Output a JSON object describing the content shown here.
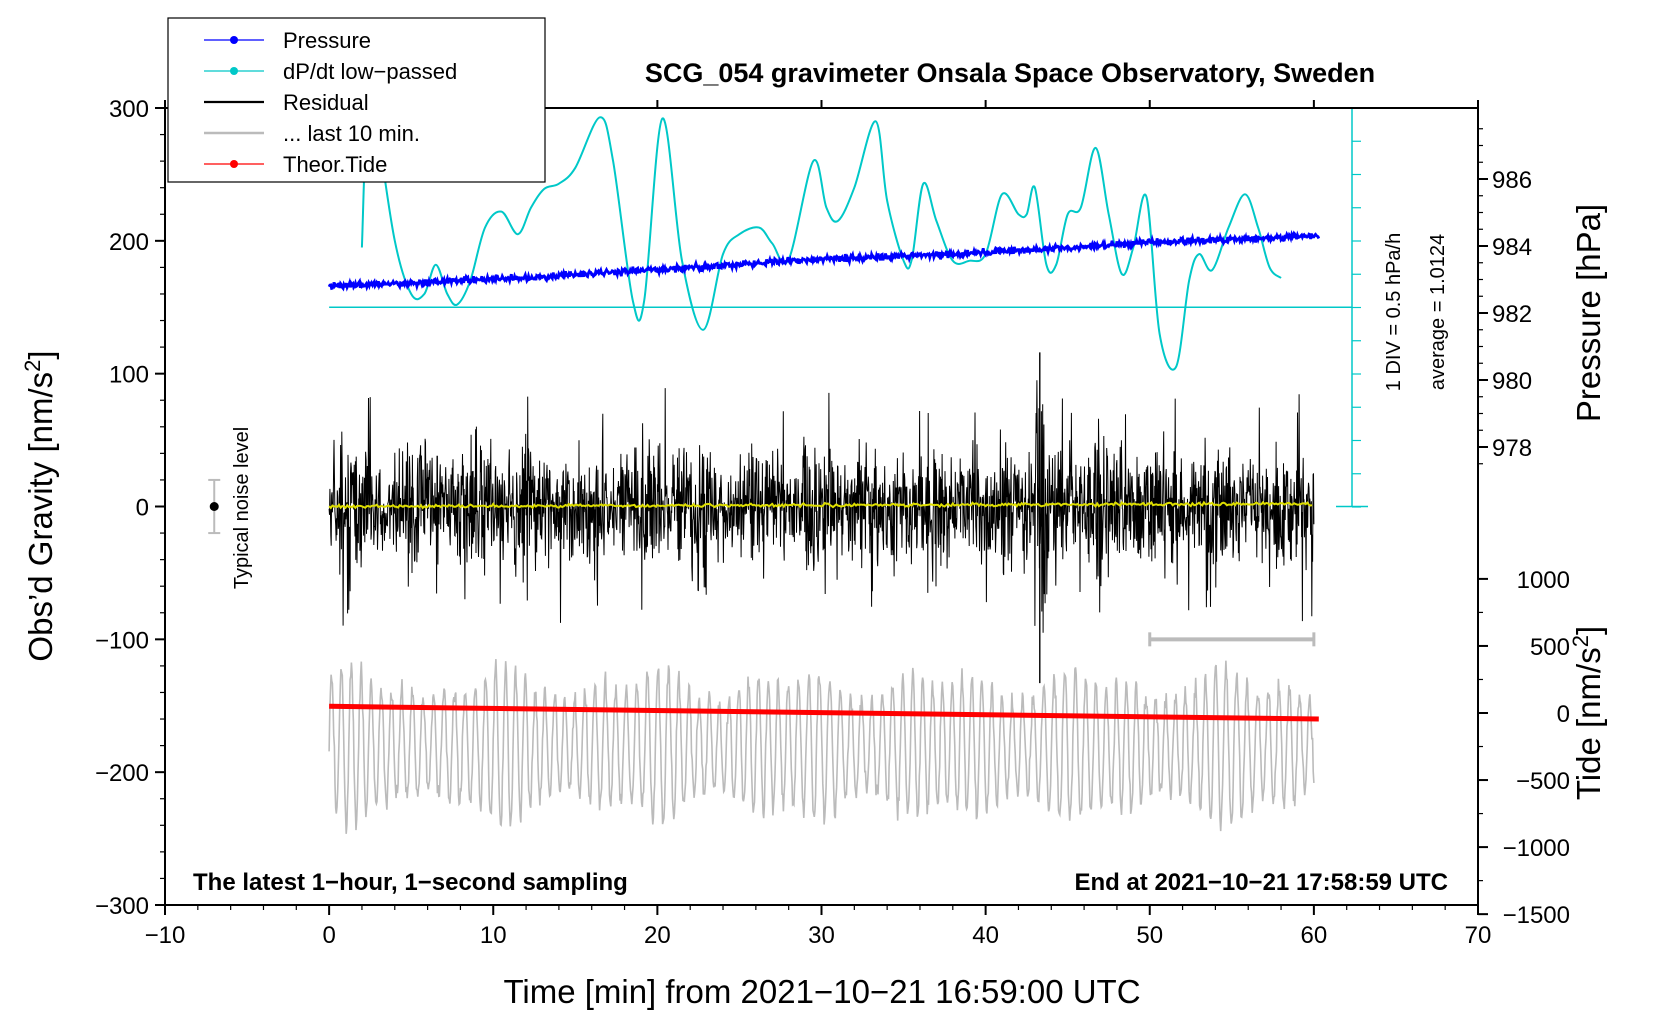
{
  "chart_data": {
    "type": "line",
    "title": "SCG_054 gravimeter Onsala Space Observatory, Sweden",
    "xlabel": "Time [min] from 2021−10−21 16:59:00 UTC",
    "ylabel_left": "Obs’d Gravity [nm/s",
    "ylabel_left_sup": "2",
    "ylabel_left_close": "]",
    "ylabel_right_pressure": "Pressure [hPa]",
    "ylabel_right_tide": "Tide [nm/s",
    "ylabel_right_tide_sup": "2",
    "ylabel_right_tide_close": "]",
    "xlim": [
      -10,
      70
    ],
    "ylim_left": [
      -300,
      300
    ],
    "x_ticks": [
      "−10",
      "0",
      "10",
      "20",
      "30",
      "40",
      "50",
      "60",
      "70"
    ],
    "x_tick_values": [
      -10,
      0,
      10,
      20,
      30,
      40,
      50,
      60,
      70
    ],
    "y_left_ticks": [
      "300",
      "200",
      "100",
      "0",
      "−100",
      "−200",
      "−300"
    ],
    "y_left_tick_values": [
      300,
      200,
      100,
      0,
      -100,
      -200,
      -300
    ],
    "pressure_axis": {
      "ticks": [
        "986",
        "984",
        "982",
        "980",
        "978"
      ],
      "tick_values": [
        986,
        984,
        982,
        980,
        978
      ],
      "note_div": "1 DIV = 0.5 hPa/h",
      "note_avg": "average = 1.0124"
    },
    "tide_axis": {
      "ticks": [
        "1000",
        "500",
        "0",
        "−500",
        "−1000",
        "−1500"
      ],
      "tick_values": [
        1000,
        500,
        0,
        -500,
        -1000,
        -1500
      ]
    },
    "legend": [
      {
        "label": "Pressure",
        "color": "#0000ff",
        "marker": "dot"
      },
      {
        "label": "dP/dt low−passed",
        "color": "#00c8c8",
        "marker": "dot"
      },
      {
        "label": "Residual",
        "color": "#000000",
        "marker": "none"
      },
      {
        "label": "... last 10 min.",
        "color": "#bbbbbb",
        "marker": "none"
      },
      {
        "label": "Theor.Tide",
        "color": "#ff0000",
        "marker": "dot"
      }
    ],
    "noise_label": "Typical noise level",
    "noise_level_nm_s2": 20,
    "note_left": "The latest 1−hour, 1−second sampling",
    "note_right": "End at 2021−10−21 17:58:59 UTC",
    "series": [
      {
        "name": "Pressure",
        "axis": "pressure_hPa",
        "color": "#0000ff",
        "x": [
          0,
          10,
          20,
          30,
          40,
          50,
          60
        ],
        "values": [
          982.8,
          983.0,
          983.3,
          983.6,
          983.8,
          984.1,
          984.3
        ]
      },
      {
        "name": "dP/dt low-passed",
        "axis": "gravity_scale_baseline_150",
        "color": "#00c8c8",
        "baseline_gravity_units": 150,
        "x": [
          2.0,
          2.3,
          2.7,
          3.0,
          4.0,
          5.0,
          5.8,
          6.5,
          7.2,
          7.8,
          8.6,
          9.5,
          10.5,
          11.5,
          12.3,
          13.1,
          14.0,
          15.0,
          16.5,
          17.3,
          18.5,
          19.2,
          20.3,
          21.5,
          22.8,
          24.0,
          25.0,
          26.2,
          27.0,
          28.0,
          29.5,
          30.3,
          31.0,
          32.0,
          33.3,
          34.0,
          35.0,
          35.5,
          36.2,
          37.0,
          38.0,
          39.0,
          40.0,
          41.0,
          42.0,
          42.5,
          43.0,
          43.7,
          44.3,
          45.0,
          45.8,
          46.7,
          47.5,
          48.3,
          49.0,
          49.8,
          50.6,
          51.6,
          52.4,
          53.0,
          53.8,
          54.8,
          55.8,
          56.6,
          57.3,
          58.0
        ],
        "values": [
          195,
          310,
          310,
          280,
          200,
          160,
          160,
          182,
          160,
          152,
          170,
          210,
          222,
          205,
          225,
          239,
          243,
          255,
          293,
          260,
          155,
          155,
          292,
          185,
          133,
          190,
          205,
          210,
          198,
          186,
          260,
          225,
          215,
          240,
          290,
          230,
          185,
          186,
          243,
          215,
          185,
          185,
          190,
          235,
          220,
          220,
          240,
          182,
          182,
          220,
          225,
          270,
          220,
          175,
          195,
          233,
          130,
          105,
          170,
          190,
          178,
          210,
          235,
          210,
          180,
          172
        ]
      },
      {
        "name": "Residual",
        "axis": "gravity_nm_s2",
        "color": "#000000",
        "x_range": [
          0,
          60
        ],
        "amplitude_nm_s2": 50,
        "peak_at_min": 43.3,
        "peak_max": 116,
        "peak_min": -133
      },
      {
        "name": "Residual smoothed",
        "axis": "gravity_nm_s2",
        "color": "#dddd00",
        "x": [
          0,
          60
        ],
        "values": [
          0,
          2
        ]
      },
      {
        "name": "Theor.Tide",
        "axis": "tide_nm_s2",
        "color": "#ff0000",
        "x": [
          0,
          60.3
        ],
        "values": [
          50,
          -45
        ]
      },
      {
        "name": "... last 10 min.",
        "axis": "gravity_offset_-180",
        "color": "#bbbbbb",
        "offset_gravity_units": -180,
        "x_range": [
          0,
          60
        ],
        "amplitude_nm_s2": 60
      }
    ],
    "scale_bar_10min": {
      "x": [
        50,
        60
      ],
      "y": -100
    }
  }
}
